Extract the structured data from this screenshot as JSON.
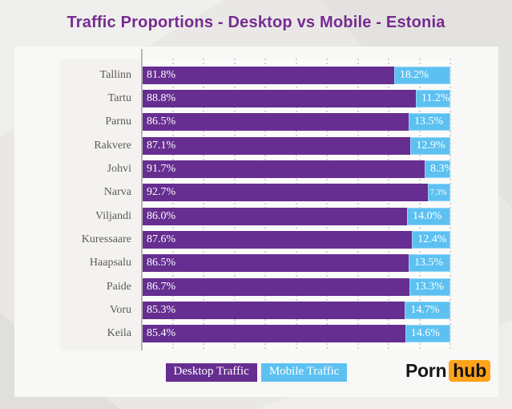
{
  "title": "Traffic Proportions - Desktop vs Mobile - Estonia",
  "legend": {
    "desktop_label": "Desktop Traffic",
    "mobile_label": "Mobile Traffic"
  },
  "logo": {
    "text_plain": "Porn",
    "text_badge": "hub"
  },
  "colors": {
    "title": "#762b90",
    "desktop": "#662e90",
    "mobile": "#5cc1f1",
    "logo_badge": "#ffa31a",
    "page_background": "#e9e8e6"
  },
  "chart_data": {
    "type": "bar",
    "orientation": "horizontal",
    "stacked": true,
    "unit": "%",
    "xlim": [
      0,
      100
    ],
    "grid": {
      "axis": "x",
      "step_percent": 10,
      "style": "dashed-vertical"
    },
    "legend_position": "bottom-center",
    "title": "Traffic Proportions - Desktop vs Mobile - Estonia",
    "categories": [
      "Tallinn",
      "Tartu",
      "Parnu",
      "Rakvere",
      "Johvi",
      "Narva",
      "Viljandi",
      "Kuressaare",
      "Haapsalu",
      "Paide",
      "Voru",
      "Keila"
    ],
    "series": [
      {
        "name": "Desktop Traffic",
        "color": "#662e90",
        "values": [
          81.8,
          88.8,
          86.5,
          87.1,
          91.7,
          92.7,
          86.0,
          87.6,
          86.5,
          86.7,
          85.3,
          85.4
        ]
      },
      {
        "name": "Mobile Traffic",
        "color": "#5cc1f1",
        "values": [
          18.2,
          11.2,
          13.5,
          12.9,
          8.3,
          7.3,
          14.0,
          12.4,
          13.5,
          13.3,
          14.7,
          14.6
        ]
      }
    ]
  }
}
